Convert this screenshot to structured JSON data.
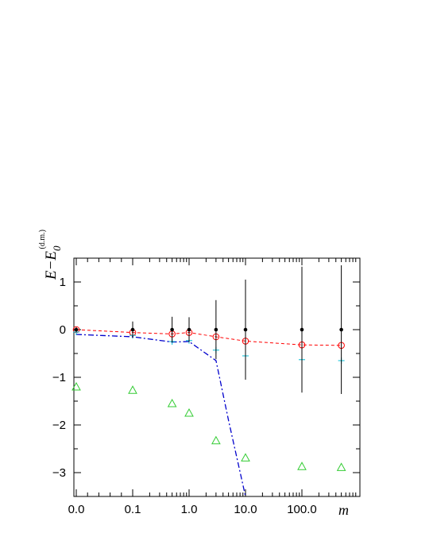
{
  "chart_data": {
    "type": "scatter",
    "title": "",
    "xlabel": "m",
    "ylabel": {
      "main": "E−E",
      "subscript": "0",
      "superscript": "(d.m.)"
    },
    "x_tick_labels": [
      "0.0",
      "0.1",
      "1.0",
      "10.0",
      "100.0"
    ],
    "x_tick_values": [
      0.0,
      0.1,
      1.0,
      10.0,
      100.0
    ],
    "x_scale": "log with 0 placed one decade left of 0.1",
    "x_range_label": "0.0 to 500",
    "yticks": [
      1,
      0,
      -1,
      -2,
      -3
    ],
    "ytick_labels": [
      "1",
      "0",
      "−1",
      "−2",
      "−3"
    ],
    "ylim": [
      -3.5,
      1.5
    ],
    "x": [
      0.0,
      0.1,
      0.5,
      1.0,
      3.0,
      10.0,
      100.0,
      500.0
    ],
    "series": [
      {
        "style": "black-dots-with-errorbars",
        "color": "#000000",
        "values": [
          0.0,
          0.0,
          0.0,
          0.0,
          0.0,
          0.0,
          0.0,
          0.0
        ],
        "errors": [
          0.05,
          0.17,
          0.27,
          0.26,
          0.62,
          1.05,
          1.32,
          1.35
        ]
      },
      {
        "style": "red-open-circles-dashed",
        "color": "#ff0000",
        "values": [
          0.0,
          -0.06,
          -0.09,
          -0.06,
          -0.15,
          -0.24,
          -0.32,
          -0.33
        ]
      },
      {
        "style": "cyan-plus-markers",
        "color": "#00bcd4",
        "values": [
          -0.05,
          -0.12,
          -0.25,
          -0.23,
          -0.43,
          -0.55,
          -0.63,
          -0.65
        ]
      },
      {
        "style": "blue-dash-dot-line",
        "color": "#0000cc",
        "x": [
          0.0,
          0.1,
          0.5,
          1.0,
          3.0,
          5.0,
          10.0
        ],
        "values": [
          -0.1,
          -0.15,
          -0.26,
          -0.25,
          -0.65,
          -1.9,
          -3.5
        ]
      },
      {
        "style": "green-open-triangles",
        "color": "#33cc33",
        "values": [
          -1.2,
          -1.27,
          -1.55,
          -1.75,
          -2.33,
          -2.69,
          -2.87,
          -2.89
        ]
      }
    ],
    "grid": false,
    "legend": "none"
  }
}
